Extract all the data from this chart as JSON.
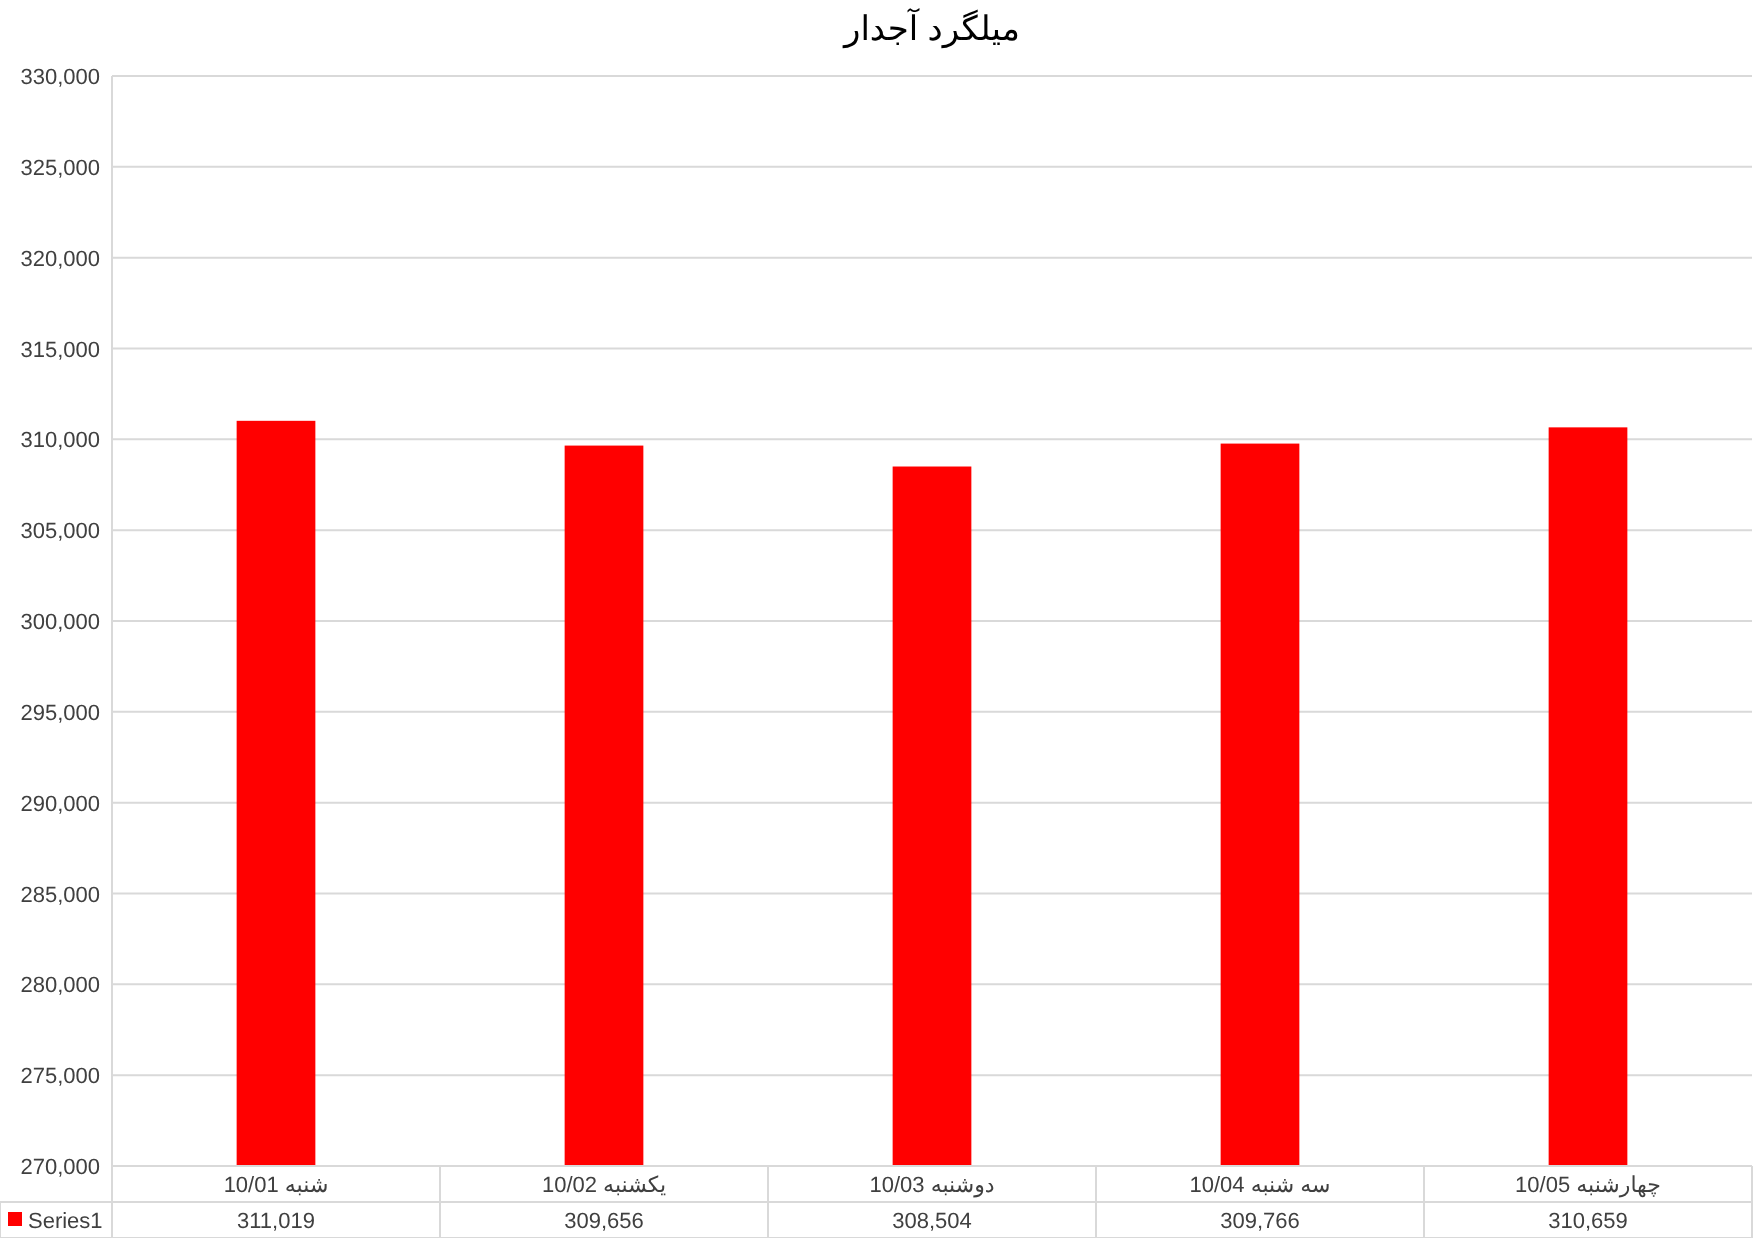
{
  "chart_data": {
    "type": "bar",
    "title": "میلگرد آجدار",
    "categories": [
      "10/01 شنبه",
      "10/02 یکشنبه",
      "10/03 دوشنبه",
      "10/04 سه شنبه",
      "10/05 چهارشنبه"
    ],
    "series": [
      {
        "name": "Series1",
        "color": "#ff0000",
        "values": [
          311019,
          309656,
          308504,
          309766,
          310659
        ],
        "value_labels": [
          "311,019",
          "309,656",
          "308,504",
          "309,766",
          "310,659"
        ]
      }
    ],
    "ylim": [
      270000,
      330000
    ],
    "yticks": [
      {
        "value": 270000,
        "label": "270,000"
      },
      {
        "value": 275000,
        "label": "275,000"
      },
      {
        "value": 280000,
        "label": "280,000"
      },
      {
        "value": 285000,
        "label": "285,000"
      },
      {
        "value": 290000,
        "label": "290,000"
      },
      {
        "value": 295000,
        "label": "295,000"
      },
      {
        "value": 300000,
        "label": "300,000"
      },
      {
        "value": 305000,
        "label": "305,000"
      },
      {
        "value": 310000,
        "label": "310,000"
      },
      {
        "value": 315000,
        "label": "315,000"
      },
      {
        "value": 320000,
        "label": "320,000"
      },
      {
        "value": 325000,
        "label": "325,000"
      },
      {
        "value": 330000,
        "label": "330,000"
      }
    ],
    "grid": "y",
    "legend": "bottom left"
  }
}
